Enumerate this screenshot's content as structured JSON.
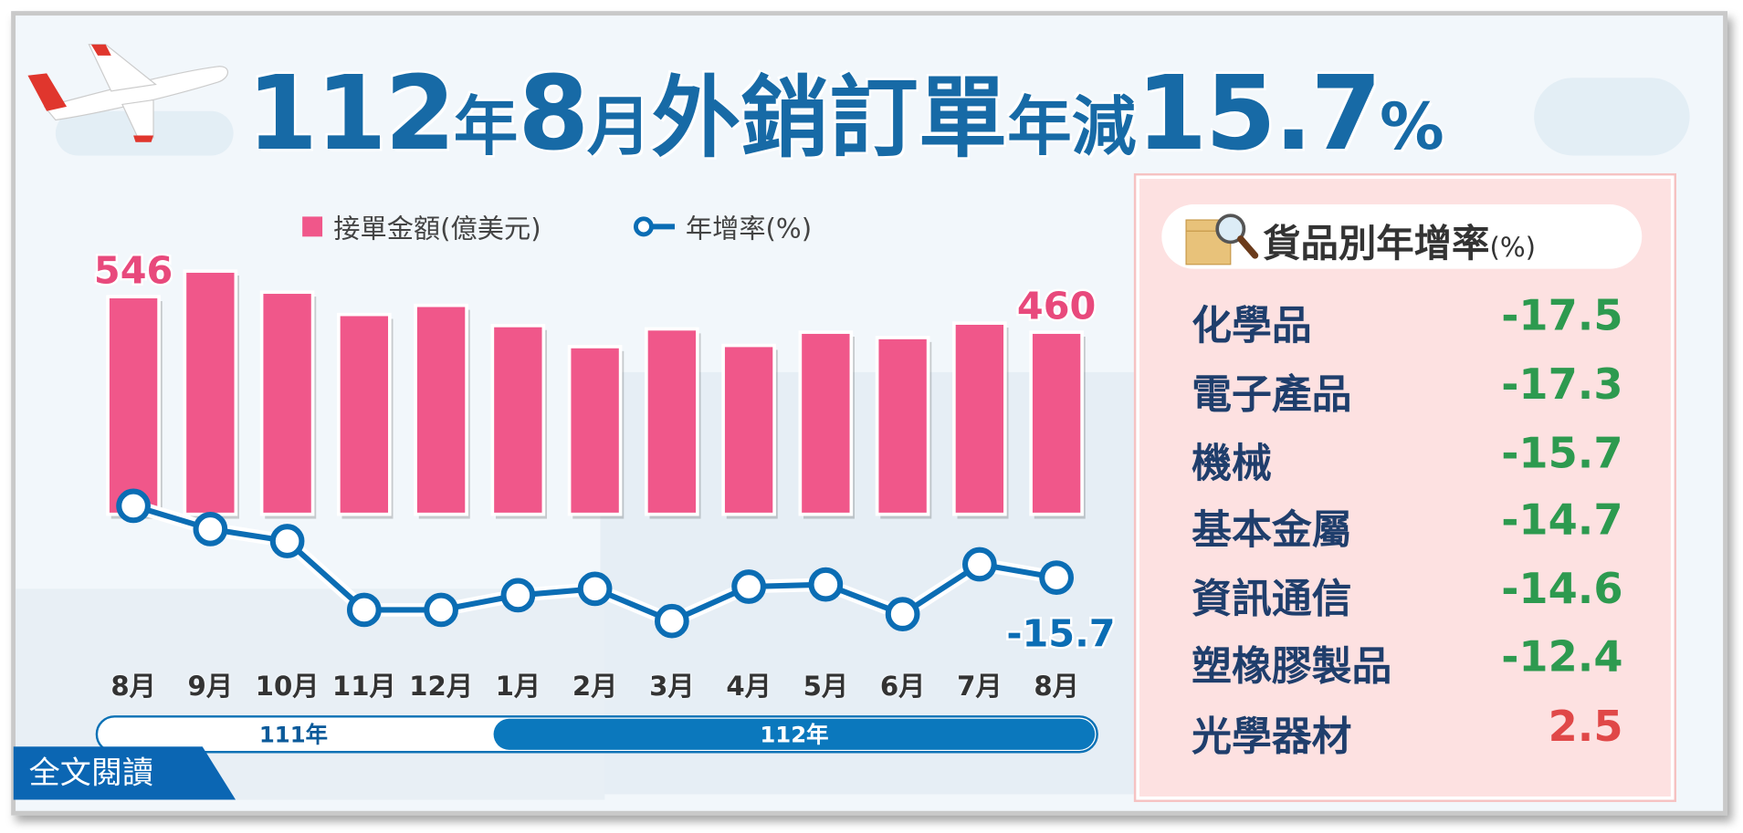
{
  "title": {
    "p1": "112",
    "p2": "年",
    "p3": "8",
    "p4": "月",
    "p5": "外銷訂單",
    "p6": "年減",
    "p7": "15.7",
    "p8": "%"
  },
  "legend": {
    "bars": "接單金額(億美元)",
    "line": "年增率(%)"
  },
  "chart_data": {
    "type": "bar+line",
    "categories": [
      "8月",
      "9月",
      "10月",
      "11月",
      "12月",
      "1月",
      "2月",
      "3月",
      "4月",
      "5月",
      "6月",
      "7月",
      "8月"
    ],
    "series": [
      {
        "name": "接單金額(億美元)",
        "type": "bar",
        "values": [
          546,
          608,
          557,
          503,
          525,
          476,
          425,
          468,
          428,
          460,
          447,
          482,
          460
        ],
        "color": "#f0578a"
      },
      {
        "name": "年增率(%)",
        "type": "line",
        "values": [
          1.0,
          -4.4,
          -7.2,
          -23.2,
          -23.2,
          -19.8,
          -18.3,
          -25.8,
          -17.8,
          -17.3,
          -24.2,
          -12.6,
          -15.7
        ],
        "color": "#0b6db4"
      }
    ],
    "data_labels": {
      "first_bar": "546",
      "last_bar": "460",
      "last_line": "-15.7"
    },
    "year_groups": [
      {
        "label": "111年",
        "months": 5
      },
      {
        "label": "112年",
        "months": 8
      }
    ]
  },
  "read_more": "全文閱讀",
  "panel": {
    "title": "貨品別年增率",
    "unit": "(%)",
    "rows": [
      {
        "label": "化學品",
        "value": "-17.5"
      },
      {
        "label": "電子產品",
        "value": "-17.3"
      },
      {
        "label": "機械",
        "value": "-15.7"
      },
      {
        "label": "基本金屬",
        "value": "-14.7"
      },
      {
        "label": "資訊通信",
        "value": "-14.6"
      },
      {
        "label": "塑橡膠製品",
        "value": "-12.4"
      },
      {
        "label": "光學器材",
        "value": "2.5"
      }
    ],
    "positive_color": "#e04848",
    "negative_color": "#2d9a4f"
  }
}
